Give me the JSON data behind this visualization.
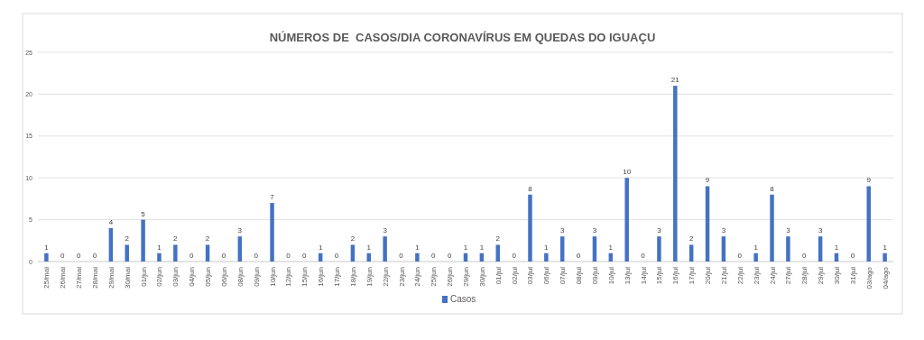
{
  "chart_data": {
    "type": "bar",
    "title": "NÚMEROS DE  CASOS/DIA CORONAVÍRUS EM QUEDAS DO IGUAÇU",
    "categories": [
      "25/mai",
      "26/mai",
      "27/mai",
      "28/mai",
      "29/mai",
      "30/mai",
      "01/jun",
      "02/jun",
      "03/jun",
      "04/jun",
      "05/jun",
      "06/jun",
      "08/jun",
      "09/jun",
      "10/jun",
      "12/jun",
      "15/jun",
      "16/jun",
      "17/jun",
      "18/jun",
      "19/jun",
      "22/jun",
      "23/jun",
      "24/jun",
      "25/jun",
      "26/jun",
      "29/jun",
      "30/jun",
      "01/jul",
      "02/jul",
      "03/jul",
      "06/jul",
      "07/jul",
      "08/jul",
      "09/jul",
      "10/jul",
      "13/jul",
      "14/jul",
      "15/jul",
      "16/jul",
      "17/jul",
      "20/jul",
      "21/jul",
      "22/jul",
      "23/jul",
      "24/jul",
      "27/jul",
      "28/jul",
      "29/jul",
      "30/jul",
      "31/jul",
      "03/ago",
      "04/ago"
    ],
    "series": [
      {
        "name": "Casos",
        "color": "#4472c4",
        "values": [
          1,
          0,
          0,
          0,
          4,
          2,
          5,
          1,
          2,
          0,
          2,
          0,
          3,
          0,
          7,
          0,
          0,
          1,
          0,
          2,
          1,
          3,
          0,
          1,
          0,
          0,
          1,
          1,
          2,
          0,
          8,
          1,
          3,
          0,
          3,
          1,
          10,
          0,
          3,
          21,
          2,
          9,
          3,
          0,
          1,
          8,
          3,
          0,
          3,
          1,
          0,
          9,
          1
        ]
      }
    ],
    "ylim": [
      0,
      25
    ],
    "yticks": [
      0,
      5,
      10,
      15,
      20,
      25
    ],
    "grid": "y",
    "legend": "bottom",
    "data_labels": true
  }
}
